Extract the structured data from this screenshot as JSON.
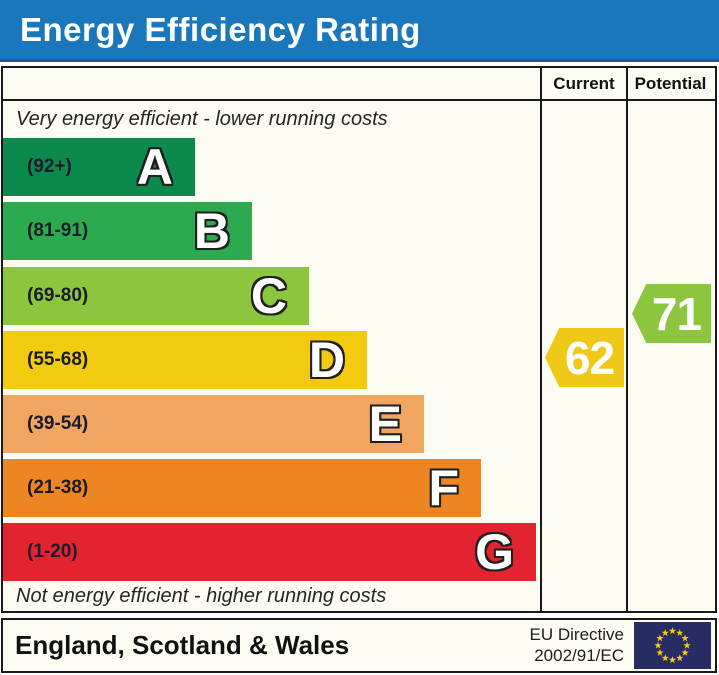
{
  "title": "Energy Efficiency Rating",
  "colors": {
    "title_bar": "#1a77bb",
    "title_underline": "#27549b",
    "table_border": "#1a1a1a",
    "panel_bg": "#fdfcf2",
    "band_letter_fill": "#ffffff",
    "band_letter_outline": "#1f1f1f",
    "arrow_text": "#ffffff"
  },
  "chart_data": {
    "type": "bar",
    "title": "Energy Efficiency Rating",
    "columns": [
      "Current",
      "Potential"
    ],
    "top_caption": "Very energy efficient - lower running costs",
    "bottom_caption": "Not energy efficient - higher running costs",
    "bands": [
      {
        "letter": "A",
        "range": "(92+)",
        "min": 92,
        "max": 100,
        "color": "#0c8a4e"
      },
      {
        "letter": "B",
        "range": "(81-91)",
        "min": 81,
        "max": 91,
        "color": "#2caa4f"
      },
      {
        "letter": "C",
        "range": "(69-80)",
        "min": 69,
        "max": 80,
        "color": "#8cc63f"
      },
      {
        "letter": "D",
        "range": "(55-68)",
        "min": 55,
        "max": 68,
        "color": "#f2cb11"
      },
      {
        "letter": "E",
        "range": "(39-54)",
        "min": 39,
        "max": 54,
        "color": "#f0a561"
      },
      {
        "letter": "F",
        "range": "(21-38)",
        "min": 21,
        "max": 38,
        "color": "#ed8523"
      },
      {
        "letter": "G",
        "range": "(1-20)",
        "min": 1,
        "max": 20,
        "color": "#e32330"
      }
    ],
    "current": {
      "value": 62,
      "band": "D",
      "color": "#f0c818"
    },
    "potential": {
      "value": 71,
      "band": "C",
      "color": "#8cc63f"
    }
  },
  "footer": {
    "region": "England, Scotland & Wales",
    "directive_line1": "EU Directive",
    "directive_line2": "2002/91/EC",
    "eu_flag": {
      "bg": "#272d63",
      "stars": "#fccd0a"
    }
  }
}
